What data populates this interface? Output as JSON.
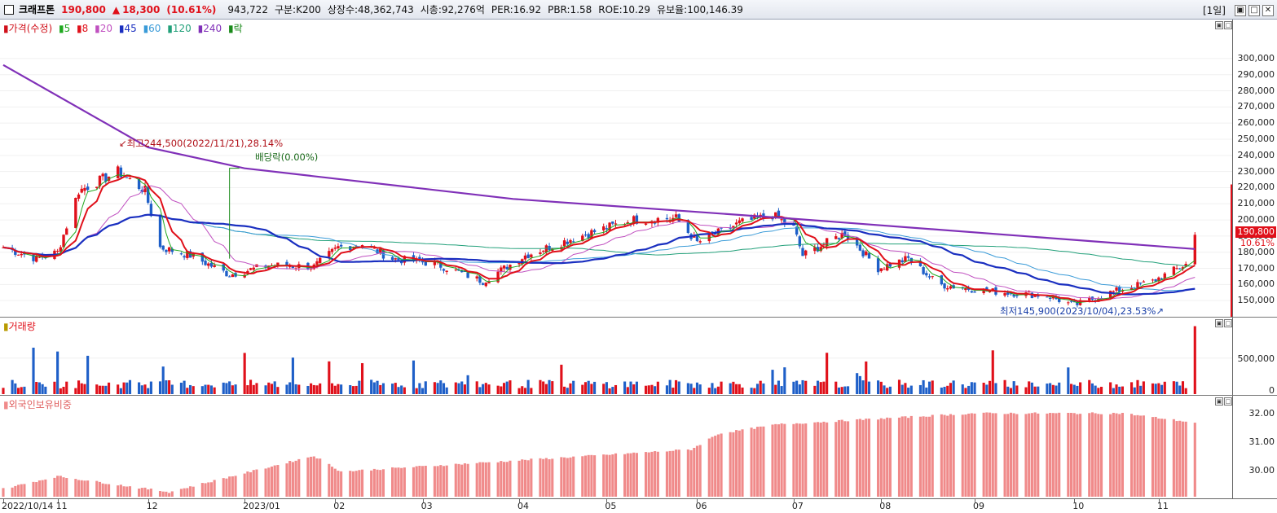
{
  "header": {
    "stock_name": "크래프톤",
    "price": "190,800",
    "change_arrow": "▲",
    "change": "18,300",
    "change_pct": "(10.61%)",
    "volume": "943,722",
    "category": "구분:K200",
    "listed_shares": "상장수:48,362,743",
    "market_cap": "시총:92,276억",
    "per": "PER:16.92",
    "pbr": "PBR:1.58",
    "roe": "ROE:10.29",
    "float": "유보율:100,146.39",
    "period": "[1일]",
    "win_buttons": [
      "▣",
      "□",
      "✕"
    ]
  },
  "price_pane": {
    "legend": [
      {
        "label": "가격(수정)",
        "color": "#d0101a"
      },
      {
        "label": "5",
        "color": "#1fa81f"
      },
      {
        "label": "8",
        "color": "#e0101a"
      },
      {
        "label": "20",
        "color": "#c050c0"
      },
      {
        "label": "45",
        "color": "#1a2fc0"
      },
      {
        "label": "60",
        "color": "#3a9bd8"
      },
      {
        "label": "120",
        "color": "#22a07a"
      },
      {
        "label": "240",
        "color": "#8030b8"
      },
      {
        "label": "락",
        "color": "#1a8a1a"
      }
    ],
    "y_ticks": [
      "300,000",
      "290,000",
      "280,000",
      "270,000",
      "260,000",
      "250,000",
      "240,000",
      "230,000",
      "220,000",
      "210,000",
      "200,000",
      "190,000",
      "180,000",
      "170,000",
      "160,000",
      "150,000"
    ],
    "current_price_label": "190,800",
    "current_pct_label": "10.61%",
    "high_annotation": "최고244,500(2022/11/21),28.14%",
    "low_annotation": "최저145,900(2023/10/04),23.53%",
    "dividend_annotation": "배당락(0.00%)",
    "pane_buttons": [
      "▣",
      "□"
    ]
  },
  "volume_pane": {
    "legend": "거래량",
    "y_ticks": [
      "500,000",
      "0"
    ],
    "pane_buttons": [
      "▣",
      "□"
    ]
  },
  "foreign_pane": {
    "legend": "외국인보유비중",
    "y_ticks": [
      "32.00",
      "31.00",
      "30.00"
    ],
    "pane_buttons": [
      "▣",
      "□"
    ]
  },
  "x_axis": {
    "labels": [
      "2022/10/14",
      "11",
      "12",
      "2023/01",
      "02",
      "03",
      "04",
      "05",
      "06",
      "07",
      "08",
      "09",
      "10",
      "11"
    ]
  },
  "colors": {
    "up": "#e0101a",
    "down": "#1e5fc8",
    "ma5": "#1fa81f",
    "ma8": "#e0101a",
    "ma20": "#c050c0",
    "ma45": "#1a2fc0",
    "ma60": "#3a9bd8",
    "ma120": "#22a07a",
    "ma240": "#8030b8",
    "foreign_bar": "#f08a8a"
  },
  "chart_data": {
    "type": "candlestick",
    "x_range": [
      "2022-10-14",
      "2023-11-14"
    ],
    "price_ylim": [
      140000,
      305000
    ],
    "price_anchor_points": [
      {
        "date": "2022-10-14",
        "close": 183000
      },
      {
        "date": "2022-10-25",
        "close": 176000
      },
      {
        "date": "2022-11-01",
        "close": 180000
      },
      {
        "date": "2022-11-08",
        "close": 218000
      },
      {
        "date": "2022-11-21",
        "close": 230000
      },
      {
        "date": "2022-11-30",
        "close": 218000
      },
      {
        "date": "2022-12-05",
        "close": 183000
      },
      {
        "date": "2022-12-15",
        "close": 178000
      },
      {
        "date": "2022-12-28",
        "close": 166000
      },
      {
        "date": "2023-01-10",
        "close": 172000
      },
      {
        "date": "2023-01-25",
        "close": 171000
      },
      {
        "date": "2023-02-02",
        "close": 183000
      },
      {
        "date": "2023-02-10",
        "close": 185000
      },
      {
        "date": "2023-02-20",
        "close": 176000
      },
      {
        "date": "2023-03-06",
        "close": 173000
      },
      {
        "date": "2023-03-22",
        "close": 162000
      },
      {
        "date": "2023-04-05",
        "close": 178000
      },
      {
        "date": "2023-04-20",
        "close": 188000
      },
      {
        "date": "2023-05-10",
        "close": 200000
      },
      {
        "date": "2023-05-25",
        "close": 201000
      },
      {
        "date": "2023-06-01",
        "close": 186000
      },
      {
        "date": "2023-06-15",
        "close": 198000
      },
      {
        "date": "2023-06-26",
        "close": 203000
      },
      {
        "date": "2023-07-03",
        "close": 195000
      },
      {
        "date": "2023-07-06",
        "close": 178000
      },
      {
        "date": "2023-07-20",
        "close": 192000
      },
      {
        "date": "2023-07-31",
        "close": 170000
      },
      {
        "date": "2023-08-10",
        "close": 176000
      },
      {
        "date": "2023-08-20",
        "close": 160000
      },
      {
        "date": "2023-09-05",
        "close": 156000
      },
      {
        "date": "2023-09-25",
        "close": 153000
      },
      {
        "date": "2023-10-04",
        "close": 147000
      },
      {
        "date": "2023-10-16",
        "close": 155000
      },
      {
        "date": "2023-10-30",
        "close": 162000
      },
      {
        "date": "2023-11-10",
        "close": 172500
      },
      {
        "date": "2023-11-13",
        "close": 190800
      }
    ],
    "ma240_anchor_points": [
      {
        "date": "2022-10-14",
        "value": 296000
      },
      {
        "date": "2022-12-01",
        "value": 245000
      },
      {
        "date": "2023-01-02",
        "value": 232000
      },
      {
        "date": "2023-04-01",
        "value": 213000
      },
      {
        "date": "2023-07-01",
        "value": 201000
      },
      {
        "date": "2023-11-13",
        "value": 182000
      }
    ],
    "volume_ylim": [
      0,
      950000
    ],
    "volume_last": 943722,
    "foreign_ratio_ylim": [
      29.3,
      32.3
    ],
    "foreign_ratio_anchor_points": [
      {
        "date": "2022-10-14",
        "value": 29.55
      },
      {
        "date": "2022-11-01",
        "value": 29.95
      },
      {
        "date": "2022-12-08",
        "value": 29.45
      },
      {
        "date": "2023-01-25",
        "value": 30.6
      },
      {
        "date": "2023-02-03",
        "value": 30.1
      },
      {
        "date": "2023-05-30",
        "value": 30.8
      },
      {
        "date": "2023-06-08",
        "value": 31.3
      },
      {
        "date": "2023-06-28",
        "value": 31.6
      },
      {
        "date": "2023-09-01",
        "value": 31.95
      },
      {
        "date": "2023-10-20",
        "value": 31.95
      },
      {
        "date": "2023-11-13",
        "value": 31.65
      }
    ]
  }
}
